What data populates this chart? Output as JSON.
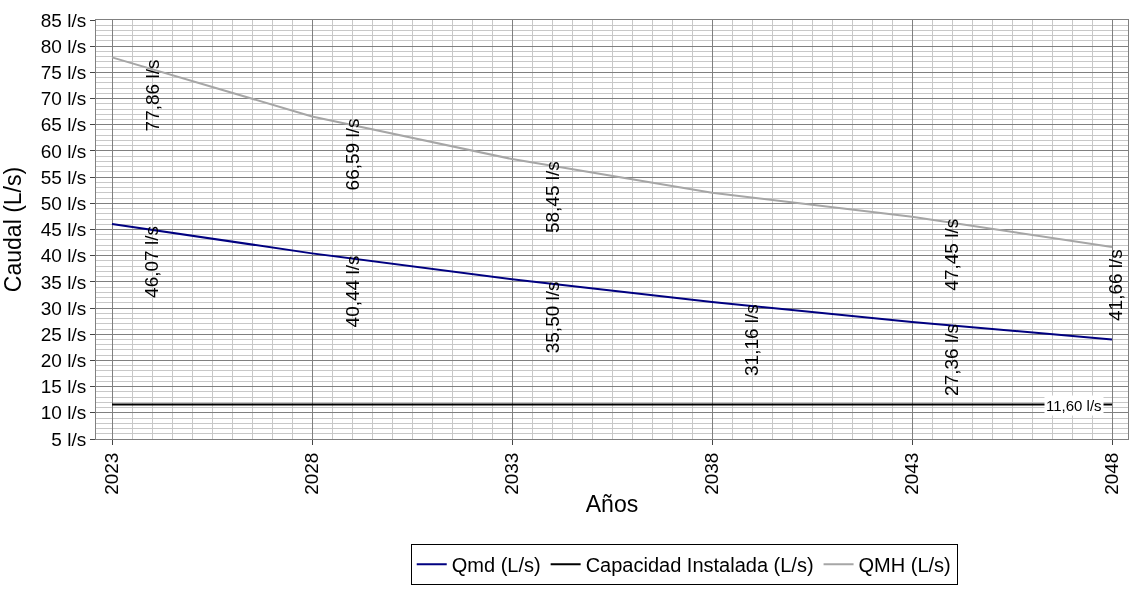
{
  "chart_data": {
    "type": "line",
    "xlabel": "Años",
    "ylabel": "Caudal (L/s)",
    "xlim": [
      2022.6,
      2048.4
    ],
    "xticks": [
      2023,
      2028,
      2033,
      2038,
      2043,
      2048
    ],
    "ylim": [
      5,
      85
    ],
    "yticks": [
      {
        "value": 5,
        "label": "5 l/s"
      },
      {
        "value": 10,
        "label": "10 l/s"
      },
      {
        "value": 15,
        "label": "15 l/s"
      },
      {
        "value": 20,
        "label": "20 l/s"
      },
      {
        "value": 25,
        "label": "25 l/s"
      },
      {
        "value": 30,
        "label": "30 l/s"
      },
      {
        "value": 35,
        "label": "35 l/s"
      },
      {
        "value": 40,
        "label": "40 l/s"
      },
      {
        "value": 45,
        "label": "45 l/s"
      },
      {
        "value": 50,
        "label": "50 l/s"
      },
      {
        "value": 55,
        "label": "55 l/s"
      },
      {
        "value": 60,
        "label": "60 l/s"
      },
      {
        "value": 65,
        "label": "65 l/s"
      },
      {
        "value": 70,
        "label": "70 l/s"
      },
      {
        "value": 75,
        "label": "75 l/s"
      },
      {
        "value": 80,
        "label": "80 l/s"
      },
      {
        "value": 85,
        "label": "85 l/s"
      }
    ],
    "grid": true,
    "legend": "bottom",
    "marker": "none",
    "line_style": "solid",
    "series": [
      {
        "name": "Qmd (L/s)",
        "color": "#000080",
        "x": [
          2023,
          2028,
          2033,
          2038,
          2043,
          2048
        ],
        "values": [
          46.07,
          40.44,
          35.5,
          31.16,
          27.36,
          24.0
        ],
        "value_labels": [
          "46,07 l/s",
          "40,44 l/s",
          "35,50 l/s",
          "31,16 l/s",
          "27,36 l/s",
          null
        ]
      },
      {
        "name": "Capacidad Instalada (L/s)",
        "color": "#000000",
        "x": [
          2023,
          2048
        ],
        "values": [
          11.6,
          11.6
        ],
        "value_labels": [
          null,
          "11,60 l/s"
        ]
      },
      {
        "name": "QMH (L/s)",
        "color": "#a6a6a6",
        "x": [
          2023,
          2028,
          2033,
          2038,
          2043,
          2048
        ],
        "values": [
          77.86,
          66.59,
          58.45,
          52.0,
          47.45,
          41.66
        ],
        "value_labels": [
          "77,86 l/s",
          "66,59 l/s",
          "58,45 l/s",
          null,
          "47,45 l/s",
          "41,66 l/s"
        ]
      }
    ]
  }
}
